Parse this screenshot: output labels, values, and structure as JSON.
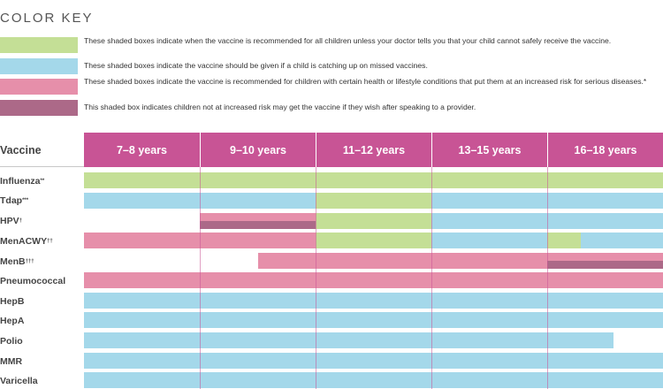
{
  "color_key": {
    "title": "COLOR KEY",
    "items": [
      {
        "color": "#c4df96",
        "text": "These shaded boxes indicate when the vaccine is recommended for all children unless your doctor tells you that your child cannot safely receive the vaccine."
      },
      {
        "color": "#a4d8ea",
        "text": "These shaded boxes indicate the vaccine should be given if a child is catching up on missed vaccines."
      },
      {
        "color": "#e68faa",
        "text": "These shaded boxes indicate the vaccine is recommended for children with certain health or lifestyle conditions that put them at an increased risk for serious diseases.*"
      },
      {
        "color": "#ac6988",
        "text": "This shaded box indicates children not at increased risk may get the vaccine if they wish after speaking to a provider."
      }
    ]
  },
  "table": {
    "vaccine_header": "Vaccine",
    "age_groups": [
      "7–8 years",
      "9–10 years",
      "11–12 years",
      "13–15 years",
      "16–18 years"
    ],
    "vaccines": [
      {
        "name": "Influenza",
        "mark": "**"
      },
      {
        "name": "Tdap",
        "mark": "***"
      },
      {
        "name": "HPV",
        "mark": "†"
      },
      {
        "name": "MenACWY",
        "mark": "††"
      },
      {
        "name": "MenB",
        "mark": "†††"
      },
      {
        "name": "Pneumococcal",
        "mark": ""
      },
      {
        "name": "HepB",
        "mark": ""
      },
      {
        "name": "HepA",
        "mark": ""
      },
      {
        "name": "Polio",
        "mark": ""
      },
      {
        "name": "MMR",
        "mark": ""
      },
      {
        "name": "Varicella",
        "mark": ""
      }
    ]
  }
}
